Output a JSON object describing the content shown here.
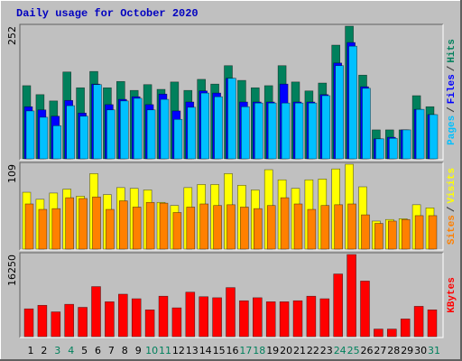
{
  "chart_data": [
    {
      "type": "bar",
      "title": "Daily usage for October 2020",
      "series": [
        {
          "name": "Hits",
          "color": "#00805c",
          "values": [
            139,
            122,
            110,
            165,
            135,
            166,
            135,
            147,
            130,
            141,
            132,
            146,
            130,
            151,
            142,
            177,
            149,
            135,
            139,
            177,
            146,
            129,
            144,
            216,
            252,
            159,
            55,
            55,
            55,
            120,
            99
          ]
        },
        {
          "name": "Files",
          "color": "#0000ff",
          "values": [
            99,
            93,
            81,
            111,
            87,
            142,
            103,
            113,
            118,
            103,
            123,
            91,
            108,
            129,
            125,
            153,
            108,
            108,
            108,
            142,
            108,
            108,
            122,
            182,
            221,
            137,
            38,
            41,
            55,
            94,
            84
          ]
        },
        {
          "name": "Pages",
          "color": "#00c0ff",
          "values": [
            91,
            79,
            63,
            101,
            81,
            141,
            93,
            110,
            115,
            93,
            113,
            75,
            98,
            125,
            118,
            153,
            99,
            106,
            106,
            106,
            106,
            106,
            120,
            177,
            214,
            134,
            38,
            39,
            55,
            94,
            84
          ]
        }
      ],
      "legend_separator": "/",
      "ylim": [
        0,
        252
      ],
      "yticks": [
        252
      ]
    },
    {
      "type": "bar",
      "series": [
        {
          "name": "Visits",
          "color": "#ffff00",
          "values": [
            73,
            64,
            72,
            77,
            68,
            97,
            70,
            79,
            78,
            76,
            60,
            56,
            79,
            83,
            83,
            97,
            82,
            76,
            102,
            89,
            78,
            89,
            90,
            103,
            109,
            80,
            36,
            38,
            39,
            57,
            53
          ]
        },
        {
          "name": "Sites",
          "color": "#ff8000",
          "values": [
            58,
            51,
            52,
            66,
            65,
            67,
            51,
            62,
            54,
            60,
            59,
            47,
            54,
            58,
            56,
            57,
            54,
            52,
            56,
            66,
            58,
            51,
            56,
            57,
            58,
            44,
            33,
            36,
            38,
            43,
            43
          ]
        }
      ],
      "legend_separator": "/",
      "ylim": [
        0,
        109
      ],
      "yticks": [
        109
      ]
    },
    {
      "type": "bar",
      "categories": [
        "1",
        "2",
        "3",
        "4",
        "5",
        "6",
        "7",
        "8",
        "9",
        "10",
        "11",
        "12",
        "13",
        "14",
        "15",
        "16",
        "17",
        "18",
        "19",
        "20",
        "21",
        "22",
        "23",
        "24",
        "25",
        "26",
        "27",
        "28",
        "29",
        "30",
        "31"
      ],
      "category_colors": [
        "#000000",
        "#000000",
        "#00805c",
        "#00805c",
        "#000000",
        "#000000",
        "#000000",
        "#000000",
        "#000000",
        "#00805c",
        "#00805c",
        "#000000",
        "#000000",
        "#000000",
        "#000000",
        "#000000",
        "#00805c",
        "#00805c",
        "#000000",
        "#000000",
        "#000000",
        "#000000",
        "#000000",
        "#00805c",
        "#00805c",
        "#000000",
        "#000000",
        "#000000",
        "#000000",
        "#000000",
        "#00805c"
      ],
      "series": [
        {
          "name": "KBytes",
          "color": "#ff0000",
          "values": [
            5500,
            6200,
            4900,
            6400,
            5800,
            9900,
            6900,
            8400,
            7500,
            5300,
            8000,
            5700,
            8800,
            7900,
            7700,
            9700,
            7100,
            7700,
            6900,
            6900,
            7100,
            8000,
            7500,
            12400,
            16250,
            11000,
            1500,
            1500,
            3500,
            6000,
            5300
          ]
        }
      ],
      "ylim": [
        0,
        16250
      ],
      "yticks": [
        16250
      ]
    }
  ]
}
